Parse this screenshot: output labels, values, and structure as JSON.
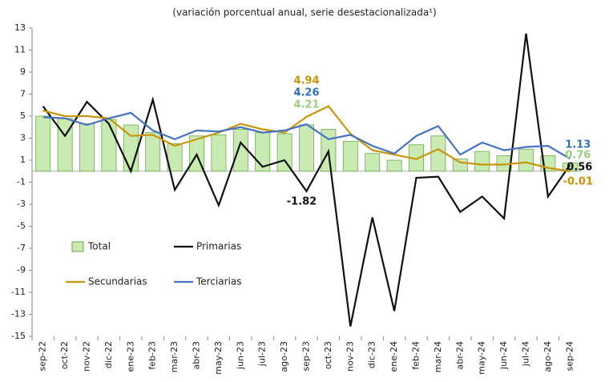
{
  "chart_data": {
    "type": "combo",
    "title": "(variación porcentual anual, serie desestacionalizada¹)",
    "categories": [
      "sep-22",
      "oct-22",
      "nov-22",
      "dic-22",
      "ene-23",
      "feb-23",
      "mar-23",
      "abr-23",
      "may-23",
      "jun-23",
      "jul-23",
      "ago-23",
      "sep-23",
      "oct-23",
      "nov-23",
      "dic-23",
      "ene-24",
      "feb-24",
      "mar-24",
      "abr-24",
      "may-24",
      "jun-24",
      "jul-24",
      "ago-24",
      "sep-24"
    ],
    "series": [
      {
        "name": "Total",
        "type": "bar",
        "color": "#c9ebb3",
        "edge": "#6aa84f",
        "label_color": "#9bcf7f",
        "values": [
          5.0,
          4.8,
          4.3,
          4.7,
          4.2,
          3.5,
          2.5,
          3.2,
          3.3,
          3.8,
          3.5,
          3.4,
          4.21,
          3.8,
          2.7,
          1.6,
          1.0,
          2.4,
          3.2,
          1.1,
          1.8,
          1.4,
          2.0,
          1.4,
          0.76
        ],
        "value_labels": [
          null,
          null,
          null,
          null,
          null,
          null,
          null,
          null,
          null,
          null,
          null,
          null,
          "4.21",
          null,
          null,
          null,
          null,
          null,
          null,
          null,
          null,
          null,
          null,
          null,
          "0.76"
        ]
      },
      {
        "name": "Primarias",
        "type": "line",
        "color": "#111111",
        "label_color": "#111111",
        "values": [
          5.9,
          3.2,
          6.3,
          4.3,
          0.0,
          6.5,
          -1.7,
          1.5,
          -3.1,
          2.6,
          0.4,
          1.0,
          -1.82,
          1.8,
          -14.1,
          -4.2,
          -12.7,
          -0.6,
          -0.5,
          -3.7,
          -2.3,
          -4.3,
          12.5,
          -2.3,
          0.56
        ],
        "value_labels": [
          null,
          null,
          null,
          null,
          null,
          null,
          null,
          null,
          null,
          null,
          null,
          null,
          "-1.82",
          null,
          null,
          null,
          null,
          null,
          null,
          null,
          null,
          null,
          null,
          null,
          "0.56"
        ]
      },
      {
        "name": "Secundarias",
        "type": "line",
        "color": "#c8960c",
        "label_color": "#c8960c",
        "values": [
          5.5,
          5.0,
          5.0,
          4.8,
          3.2,
          3.3,
          2.3,
          2.9,
          3.5,
          4.3,
          3.8,
          3.5,
          4.94,
          5.9,
          3.4,
          1.9,
          1.5,
          1.1,
          2.0,
          0.8,
          0.6,
          0.6,
          0.8,
          0.3,
          -0.01
        ],
        "value_labels": [
          null,
          null,
          null,
          null,
          null,
          null,
          null,
          null,
          null,
          null,
          null,
          null,
          "4.94",
          null,
          null,
          null,
          null,
          null,
          null,
          null,
          null,
          null,
          null,
          null,
          "-0.01"
        ]
      },
      {
        "name": "Terciarias",
        "type": "line",
        "color": "#4472c4",
        "label_color": "#2e75b6",
        "values": [
          4.9,
          4.8,
          4.2,
          4.8,
          5.3,
          3.7,
          2.9,
          3.7,
          3.6,
          4.0,
          3.5,
          3.7,
          4.26,
          2.9,
          3.3,
          2.3,
          1.6,
          3.2,
          4.1,
          1.5,
          2.6,
          1.9,
          2.2,
          2.3,
          1.13
        ],
        "value_labels": [
          null,
          null,
          null,
          null,
          null,
          null,
          null,
          null,
          null,
          null,
          null,
          null,
          "4.26",
          null,
          null,
          null,
          null,
          null,
          null,
          null,
          null,
          null,
          null,
          null,
          "1.13"
        ]
      }
    ],
    "ylim": [
      -15,
      13
    ],
    "yticks": [
      13,
      11,
      9,
      7,
      5,
      3,
      1,
      -1,
      -3,
      -5,
      -7,
      -9,
      -11,
      -13,
      -15
    ],
    "legend": "lower-left",
    "grid": false
  }
}
